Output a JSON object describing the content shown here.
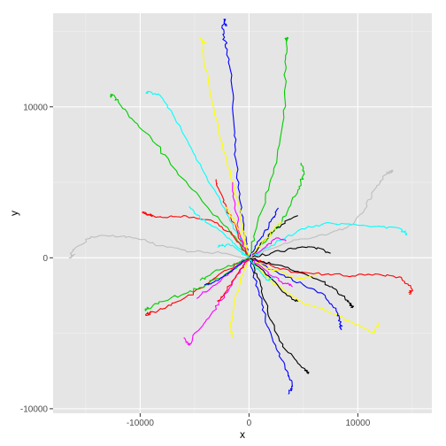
{
  "chart_data": {
    "type": "line",
    "xlabel": "x",
    "ylabel": "y",
    "xlim": [
      -18000,
      16800
    ],
    "ylim": [
      -10300,
      16200
    ],
    "x_ticks": [
      -10000,
      0,
      10000
    ],
    "y_ticks": [
      -10000,
      0,
      10000
    ],
    "x_tick_labels": [
      "-10000",
      "0",
      "10000"
    ],
    "y_tick_labels": [
      "-10000",
      "0",
      "10000"
    ],
    "grid": true,
    "legend": "none",
    "background": "#e5e5e5",
    "grid_color": "#ffffff",
    "series": [
      {
        "color": "#0000ff",
        "points": [
          [
            0,
            0
          ],
          [
            -400,
            1500
          ],
          [
            -900,
            4000
          ],
          [
            -1200,
            6500
          ],
          [
            -1400,
            9000
          ],
          [
            -1600,
            11500
          ],
          [
            -2000,
            13800
          ],
          [
            -2400,
            14800
          ],
          [
            -2300,
            15800
          ],
          [
            -2000,
            15400
          ]
        ]
      },
      {
        "color": "#ffff00",
        "points": [
          [
            0,
            0
          ],
          [
            -600,
            2200
          ],
          [
            -1500,
            5000
          ],
          [
            -2700,
            8000
          ],
          [
            -3600,
            11000
          ],
          [
            -4200,
            13500
          ],
          [
            -4400,
            14500
          ],
          [
            -3900,
            14200
          ]
        ]
      },
      {
        "color": "#00cd00",
        "points": [
          [
            0,
            0
          ],
          [
            700,
            2000
          ],
          [
            1800,
            4500
          ],
          [
            2800,
            7500
          ],
          [
            3300,
            10500
          ],
          [
            3300,
            13000
          ],
          [
            3500,
            14600
          ],
          [
            3400,
            14400
          ]
        ]
      },
      {
        "color": "#00cd00",
        "points": [
          [
            0,
            0
          ],
          [
            -1800,
            1800
          ],
          [
            -4000,
            3500
          ],
          [
            -6500,
            5500
          ],
          [
            -8500,
            7500
          ],
          [
            -10500,
            9000
          ],
          [
            -12000,
            10300
          ],
          [
            -12500,
            10800
          ],
          [
            -12700,
            10700
          ]
        ]
      },
      {
        "color": "#00ffff",
        "points": [
          [
            0,
            0
          ],
          [
            -1000,
            1500
          ],
          [
            -2500,
            3500
          ],
          [
            -4000,
            5500
          ],
          [
            -5500,
            7500
          ],
          [
            -7000,
            9500
          ],
          [
            -8200,
            10800
          ],
          [
            -9300,
            11000
          ],
          [
            -9500,
            10900
          ]
        ]
      },
      {
        "color": "#00ffff",
        "points": [
          [
            0,
            0
          ],
          [
            2000,
            800
          ],
          [
            4500,
            1800
          ],
          [
            7000,
            2300
          ],
          [
            9500,
            2200
          ],
          [
            12000,
            2100
          ],
          [
            14000,
            1900
          ],
          [
            14500,
            1500
          ]
        ]
      },
      {
        "color": "#ff0000",
        "points": [
          [
            0,
            0
          ],
          [
            2000,
            -500
          ],
          [
            4500,
            -1000
          ],
          [
            7000,
            -1100
          ],
          [
            9500,
            -1200
          ],
          [
            12000,
            -1100
          ],
          [
            14000,
            -1300
          ],
          [
            15000,
            -2100
          ],
          [
            14700,
            -2400
          ]
        ]
      },
      {
        "color": "#bebebe",
        "points": [
          [
            0,
            0
          ],
          [
            -2500,
            300
          ],
          [
            -5000,
            400
          ],
          [
            -7500,
            700
          ],
          [
            -10000,
            1200
          ],
          [
            -12500,
            1500
          ],
          [
            -14500,
            1400
          ],
          [
            -16000,
            600
          ],
          [
            -16500,
            0
          ],
          [
            -16000,
            200
          ]
        ]
      },
      {
        "color": "#bebebe",
        "points": [
          [
            0,
            0
          ],
          [
            2000,
            600
          ],
          [
            4500,
            1200
          ],
          [
            7000,
            1500
          ],
          [
            9000,
            2000
          ],
          [
            10500,
            3000
          ],
          [
            11500,
            4500
          ],
          [
            12500,
            5500
          ],
          [
            13200,
            5800
          ],
          [
            12900,
            5700
          ]
        ]
      },
      {
        "color": "#000000",
        "points": [
          [
            0,
            0
          ],
          [
            1000,
            -1500
          ],
          [
            1700,
            -3500
          ],
          [
            2800,
            -5500
          ],
          [
            4500,
            -7000
          ],
          [
            5500,
            -7600
          ],
          [
            5200,
            -7500
          ]
        ]
      },
      {
        "color": "#000000",
        "points": [
          [
            0,
            0
          ],
          [
            2000,
            -400
          ],
          [
            4500,
            -900
          ],
          [
            6500,
            -1500
          ],
          [
            8000,
            -2100
          ],
          [
            9000,
            -2800
          ],
          [
            9500,
            -3300
          ],
          [
            9300,
            -3000
          ]
        ]
      },
      {
        "color": "#ff00ff",
        "points": [
          [
            0,
            0
          ],
          [
            -1200,
            -1200
          ],
          [
            -2500,
            -2800
          ],
          [
            -3700,
            -4000
          ],
          [
            -5000,
            -5000
          ],
          [
            -5500,
            -5800
          ],
          [
            -6000,
            -5300
          ]
        ]
      },
      {
        "color": "#ff0000",
        "points": [
          [
            0,
            0
          ],
          [
            -2000,
            -800
          ],
          [
            -4000,
            -1800
          ],
          [
            -6000,
            -2700
          ],
          [
            -8000,
            -3400
          ],
          [
            -9500,
            -3800
          ],
          [
            -9100,
            -3600
          ]
        ]
      },
      {
        "color": "#00cd00",
        "points": [
          [
            0,
            0
          ],
          [
            -2000,
            -1000
          ],
          [
            -4000,
            -1800
          ],
          [
            -6000,
            -2400
          ],
          [
            -8000,
            -2900
          ],
          [
            -9500,
            -3500
          ],
          [
            -9200,
            -3300
          ]
        ]
      },
      {
        "color": "#ffff00",
        "points": [
          [
            0,
            0
          ],
          [
            2000,
            -1500
          ],
          [
            4500,
            -2800
          ],
          [
            7000,
            -3500
          ],
          [
            9500,
            -4300
          ],
          [
            11500,
            -5000
          ],
          [
            12000,
            -4300
          ]
        ]
      },
      {
        "color": "#0000ff",
        "points": [
          [
            0,
            0
          ],
          [
            800,
            -2000
          ],
          [
            1500,
            -4000
          ],
          [
            2500,
            -6000
          ],
          [
            3500,
            -7500
          ],
          [
            4000,
            -8500
          ],
          [
            3600,
            -9000
          ]
        ]
      },
      {
        "color": "#00cd00",
        "points": [
          [
            0,
            0
          ],
          [
            2000,
            1500
          ],
          [
            3500,
            3000
          ],
          [
            4500,
            4500
          ],
          [
            5000,
            5500
          ],
          [
            4800,
            6300
          ]
        ]
      },
      {
        "color": "#ff0000",
        "points": [
          [
            0,
            0
          ],
          [
            -1500,
            1500
          ],
          [
            -3500,
            2500
          ],
          [
            -6000,
            2800
          ],
          [
            -8500,
            2700
          ],
          [
            -9800,
            3000
          ],
          [
            -9000,
            2800
          ]
        ]
      },
      {
        "color": "#ff0000",
        "points": [
          [
            0,
            0
          ],
          [
            -1000,
            1600
          ],
          [
            -2000,
            3200
          ],
          [
            -2800,
            4600
          ],
          [
            -3000,
            5200
          ]
        ]
      },
      {
        "color": "#00ffff",
        "points": [
          [
            0,
            0
          ],
          [
            -1500,
            1000
          ],
          [
            -3000,
            2000
          ],
          [
            -4500,
            2600
          ],
          [
            -5500,
            3400
          ]
        ]
      },
      {
        "color": "#ff00ff",
        "points": [
          [
            0,
            0
          ],
          [
            -800,
            1500
          ],
          [
            -1200,
            3000
          ],
          [
            -1500,
            5000
          ]
        ]
      },
      {
        "color": "#ffff00",
        "points": [
          [
            0,
            0
          ],
          [
            -400,
            1200
          ],
          [
            -1400,
            2500
          ],
          [
            -2200,
            3400
          ]
        ]
      },
      {
        "color": "#000000",
        "points": [
          [
            0,
            0
          ],
          [
            1500,
            1200
          ],
          [
            3000,
            2200
          ],
          [
            4500,
            2800
          ]
        ]
      },
      {
        "color": "#000000",
        "points": [
          [
            0,
            0
          ],
          [
            2000,
            300
          ],
          [
            4000,
            600
          ],
          [
            6000,
            700
          ],
          [
            7500,
            300
          ]
        ]
      },
      {
        "color": "#0000ff",
        "points": [
          [
            0,
            0
          ],
          [
            2500,
            -900
          ],
          [
            5000,
            -1800
          ],
          [
            7000,
            -2500
          ],
          [
            8000,
            -3500
          ],
          [
            8500,
            -4500
          ],
          [
            8400,
            -4700
          ]
        ]
      },
      {
        "color": "#ffff00",
        "points": [
          [
            0,
            0
          ],
          [
            -800,
            -1500
          ],
          [
            -1300,
            -3000
          ],
          [
            -1700,
            -4500
          ],
          [
            -1500,
            -5300
          ]
        ]
      },
      {
        "color": "#ff00ff",
        "points": [
          [
            0,
            0
          ],
          [
            -1800,
            -1000
          ],
          [
            -3500,
            -2000
          ],
          [
            -4800,
            -2700
          ]
        ]
      },
      {
        "color": "#0000ff",
        "points": [
          [
            0,
            0
          ],
          [
            -1500,
            -800
          ],
          [
            -2800,
            -1500
          ],
          [
            -4100,
            -1800
          ]
        ]
      },
      {
        "color": "#00cd00",
        "points": [
          [
            0,
            0
          ],
          [
            -1500,
            -500
          ],
          [
            -3000,
            -800
          ],
          [
            -4500,
            -1500
          ]
        ]
      },
      {
        "color": "#ffff00",
        "points": [
          [
            0,
            0
          ],
          [
            1800,
            -700
          ],
          [
            3500,
            -1100
          ],
          [
            5000,
            -1400
          ],
          [
            6200,
            -1100
          ]
        ]
      },
      {
        "color": "#ff00ff",
        "points": [
          [
            0,
            0
          ],
          [
            1500,
            -800
          ],
          [
            3000,
            -1600
          ],
          [
            4000,
            -1900
          ]
        ]
      },
      {
        "color": "#ff00ff",
        "points": [
          [
            0,
            0
          ],
          [
            1500,
            700
          ],
          [
            2500,
            1300
          ],
          [
            3400,
            1100
          ]
        ]
      },
      {
        "color": "#000000",
        "points": [
          [
            0,
            0
          ],
          [
            1800,
            -1200
          ],
          [
            3500,
            -2500
          ],
          [
            4500,
            -2900
          ]
        ]
      },
      {
        "color": "#00ffff",
        "points": [
          [
            0,
            0
          ],
          [
            1000,
            -900
          ],
          [
            1800,
            -1500
          ],
          [
            2300,
            -1300
          ]
        ]
      },
      {
        "color": "#ff0000",
        "points": [
          [
            0,
            0
          ],
          [
            -1200,
            -1300
          ],
          [
            -2300,
            -2400
          ],
          [
            -2900,
            -2900
          ]
        ]
      },
      {
        "color": "#0000ff",
        "points": [
          [
            0,
            0
          ],
          [
            1000,
            1200
          ],
          [
            2000,
            2400
          ],
          [
            2700,
            3300
          ]
        ]
      },
      {
        "color": "#ffff00",
        "points": [
          [
            0,
            0
          ],
          [
            1200,
            1000
          ],
          [
            2300,
            1900
          ],
          [
            3000,
            2400
          ]
        ]
      },
      {
        "color": "#00ffff",
        "points": [
          [
            0,
            0
          ],
          [
            -1000,
            500
          ],
          [
            -2000,
            900
          ],
          [
            -2900,
            700
          ]
        ]
      }
    ]
  }
}
